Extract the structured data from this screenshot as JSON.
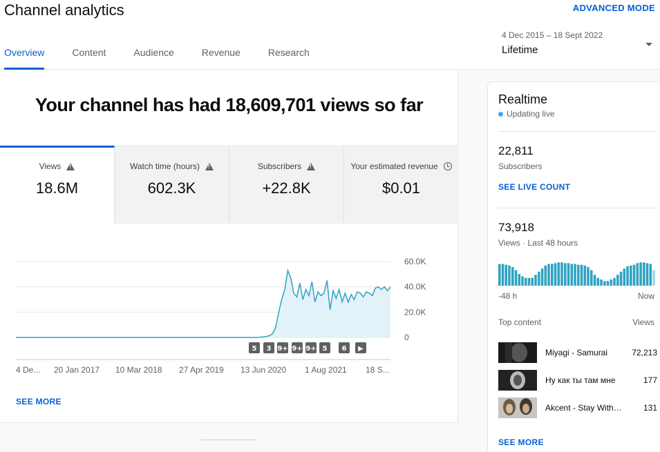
{
  "header": {
    "title": "Channel analytics",
    "advanced_mode": "ADVANCED MODE",
    "tabs": [
      {
        "label": "Overview",
        "active": true
      },
      {
        "label": "Content",
        "active": false
      },
      {
        "label": "Audience",
        "active": false
      },
      {
        "label": "Revenue",
        "active": false
      },
      {
        "label": "Research",
        "active": false
      }
    ],
    "date_range": "4 Dec 2015 – 18 Sept 2022",
    "range_label": "Lifetime"
  },
  "main": {
    "headline": "Your channel has had 18,609,701 views so far",
    "metrics": [
      {
        "label": "Views",
        "value": "18.6M",
        "icon": "warning-icon",
        "active": true
      },
      {
        "label": "Watch time (hours)",
        "value": "602.3K",
        "icon": "warning-icon",
        "active": false
      },
      {
        "label": "Subscribers",
        "value": "+22.8K",
        "icon": "warning-icon",
        "active": false
      },
      {
        "label": "Your estimated revenue",
        "value": "$0.01",
        "icon": "clock-icon",
        "active": false
      }
    ],
    "see_more": "SEE MORE"
  },
  "chart_data": {
    "type": "area",
    "metric": "Views",
    "x_ticks": [
      "4 De...",
      "20 Jan 2017",
      "10 Mar 2018",
      "27 Apr 2019",
      "13 Jun 2020",
      "1 Aug 2021",
      "18 S..."
    ],
    "y_ticks": [
      "60.0K",
      "40.0K",
      "20.0K",
      "0"
    ],
    "ylim": [
      0,
      60000
    ],
    "series": [
      {
        "values": [
          0,
          0,
          0,
          0,
          0,
          0,
          0,
          0,
          0,
          0,
          0,
          0,
          0,
          0,
          0,
          0,
          0,
          0,
          0,
          0,
          0,
          0,
          0,
          0,
          0,
          0,
          0,
          0,
          0,
          0,
          0,
          0,
          0,
          0,
          0,
          0,
          0,
          0,
          0,
          0,
          0,
          0,
          0,
          0,
          0,
          0,
          0,
          0,
          0,
          0,
          0,
          0,
          0,
          0,
          0,
          0,
          0,
          0,
          0,
          0,
          0,
          0,
          0,
          0,
          0,
          0,
          0,
          0,
          0,
          0,
          0,
          0,
          0,
          0,
          0,
          0,
          0,
          0,
          0,
          0,
          0,
          200,
          500,
          800,
          1500,
          3000,
          8000,
          20000,
          30000,
          38000,
          53000,
          47000,
          35000,
          32000,
          43000,
          30000,
          38000,
          33000,
          44000,
          28000,
          36000,
          33000,
          35000,
          45000,
          22000,
          37000,
          31000,
          38000,
          28000,
          35000,
          28000,
          34000,
          30000,
          36000,
          35000,
          32000,
          36000,
          35000,
          33000,
          39000,
          40000,
          38000,
          40000,
          37000,
          40000
        ]
      }
    ],
    "annotations": [
      "5",
      "3",
      "9+",
      "9+",
      "9+",
      "5",
      "6",
      "▶"
    ],
    "grid": true
  },
  "realtime": {
    "title": "Realtime",
    "status": "Updating live",
    "subscribers_value": "22,811",
    "subscribers_label": "Subscribers",
    "see_live_count": "SEE LIVE COUNT",
    "views_value": "73,918",
    "views_label": "Views · Last 48 hours",
    "views_bars": [
      28,
      28,
      27,
      26,
      24,
      20,
      15,
      12,
      10,
      10,
      10,
      14,
      18,
      22,
      26,
      28,
      28,
      29,
      30,
      30,
      29,
      29,
      28,
      28,
      27,
      27,
      26,
      24,
      20,
      14,
      10,
      8,
      6,
      6,
      8,
      10,
      14,
      18,
      22,
      25,
      26,
      27,
      29,
      30,
      30,
      29,
      28,
      20
    ],
    "axis_start": "-48 h",
    "axis_end": "Now",
    "top_content_label": "Top content",
    "top_content_views_label": "Views",
    "top_content": [
      {
        "title": "Miyagi - Samurai",
        "views": "72,213"
      },
      {
        "title": "Ну как ты там мне",
        "views": "177"
      },
      {
        "title": "Akcent - Stay With Me",
        "views": "131"
      }
    ],
    "see_more": "SEE MORE"
  },
  "colors": {
    "accent": "#065fd4",
    "chart_line": "#2ea3c2",
    "chart_fill": "#e2f2f8",
    "live_dot": "#3ea6ff"
  }
}
